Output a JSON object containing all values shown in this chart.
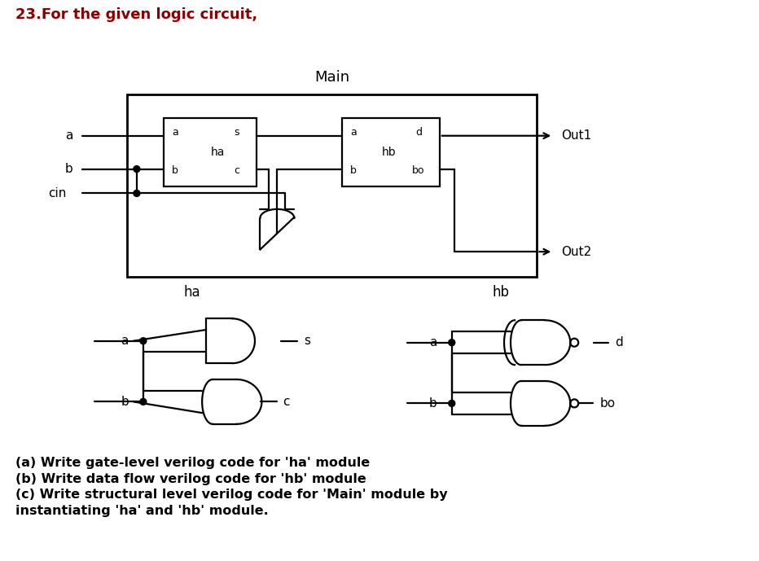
{
  "title_text": "23.For the given logic circuit,",
  "title_color": "#8B0000",
  "title_fontsize": 13,
  "bg_color": "#ffffff",
  "main_label": "Main",
  "main_label_fontsize": 13,
  "body_text_lines": [
    "(a) Write gate-level verilog code for 'ha' module",
    "(b) Write data flow verilog code for 'hb' module",
    "(c) Write structural level verilog code for 'Main' module by",
    "instantiating 'ha' and 'hb' module."
  ],
  "body_fontsize": 11.5,
  "line_color": "#000000",
  "lw": 1.6
}
